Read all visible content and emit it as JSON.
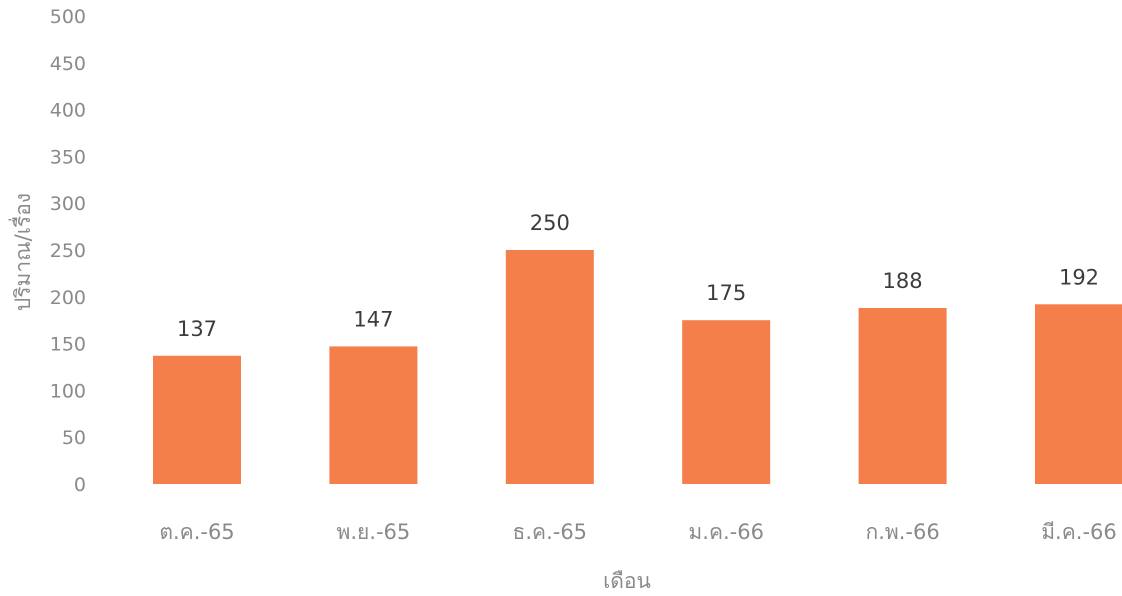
{
  "chart_data": {
    "type": "bar",
    "title": "",
    "xlabel": "เดือน",
    "ylabel": "ปริมาณ/เรื่อง",
    "categories": [
      "ต.ค.-65",
      "พ.ย.-65",
      "ธ.ค.-65",
      "ม.ค.-66",
      "ก.พ.-66",
      "มี.ค.-66"
    ],
    "values": [
      137,
      147,
      250,
      175,
      188,
      192
    ],
    "ylim": [
      0,
      500
    ],
    "yticks": [
      0,
      50,
      100,
      150,
      200,
      250,
      300,
      350,
      400,
      450,
      500
    ],
    "grid": false,
    "legend": "none",
    "bar_color": "#f47f4a"
  }
}
